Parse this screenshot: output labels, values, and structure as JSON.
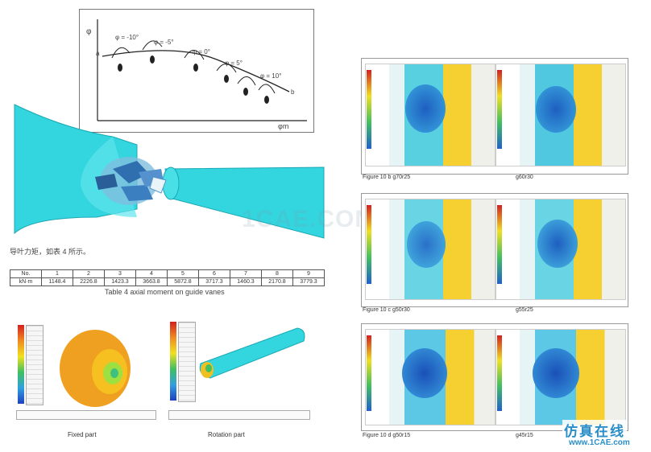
{
  "graph": {
    "y_axis_label": "φ",
    "x_axis_label": "φm",
    "point_labels": [
      "φ = -10°",
      "φ = -5°",
      "φ = 0°",
      "φ = 5°",
      "φ = 10°"
    ],
    "curve_start_label": "a",
    "curve_end_label": "b"
  },
  "left_text": {
    "note": "导叶力矩，如表 4 所示。",
    "table_caption": "Table 4 axial moment on guide vanes",
    "table": {
      "header_row": [
        "No.",
        "1",
        "2",
        "3",
        "4",
        "5",
        "6",
        "7",
        "8",
        "9"
      ],
      "value_row": [
        "kN·m",
        "1148.4",
        "2226.8",
        "1423.3",
        "3663.8",
        "5872.8",
        "3717.3",
        "1460.3",
        "2170.8",
        "3779.3"
      ]
    }
  },
  "bottom_left": {
    "fixed_caption": "Fixed part",
    "rotation_caption": "Rotation part"
  },
  "figures": [
    {
      "left_caption": "Figure 10 b   g70r25",
      "right_caption": "g60r30"
    },
    {
      "left_caption": "Figure 10 c   g50r30",
      "right_caption": "g55r25"
    },
    {
      "left_caption": "Figure 10 d   g50r15",
      "right_caption": "g45r15"
    }
  ],
  "watermark": "1CAE.COM",
  "site": {
    "cn_name": "仿真在线",
    "url": "www.1CAE.com"
  },
  "colors": {
    "cyan_body": "#33d6de",
    "orange": "#f0a020",
    "site_blue": "#2a8ec8"
  }
}
